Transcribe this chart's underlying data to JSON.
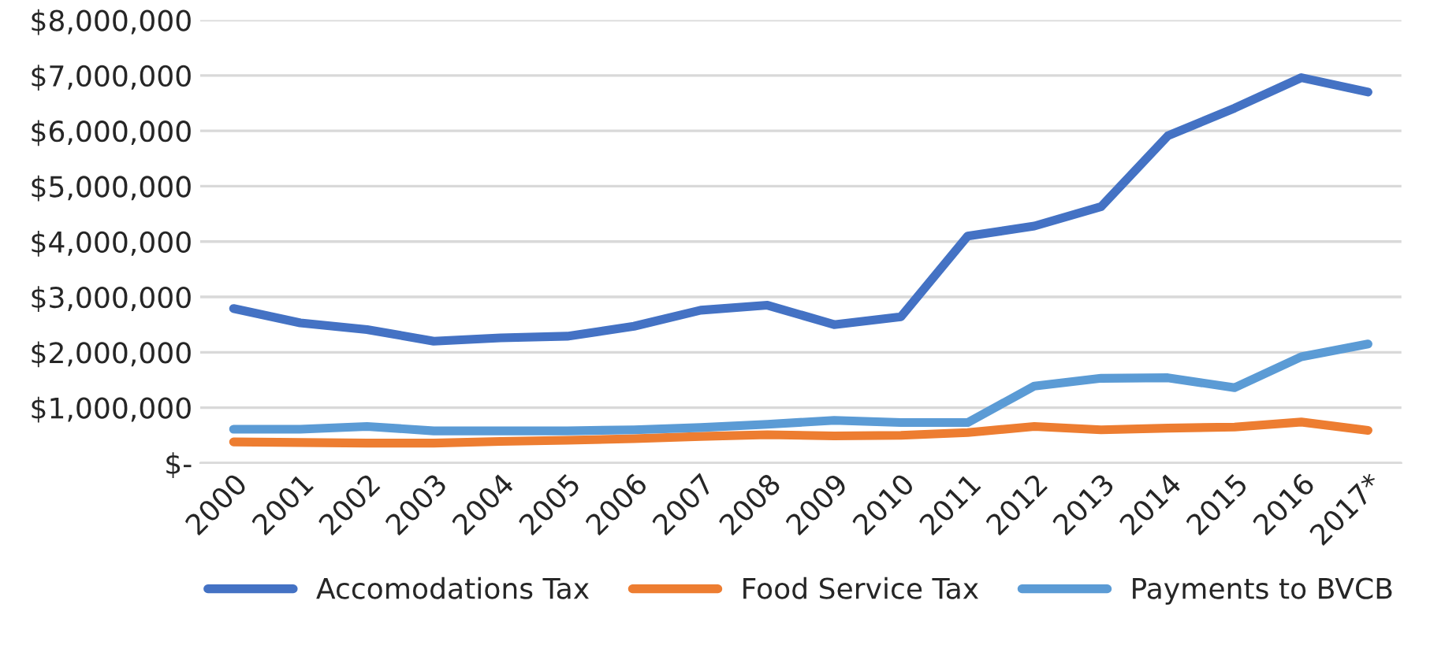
{
  "chart_data": {
    "type": "line",
    "categories": [
      "2000",
      "2001",
      "2002",
      "2003",
      "2004",
      "2005",
      "2006",
      "2007",
      "2008",
      "2009",
      "2010",
      "2011",
      "2012",
      "2013",
      "2014",
      "2015",
      "2016",
      "2017*"
    ],
    "series": [
      {
        "name": "Accomodations Tax",
        "color": "#4472c4",
        "values": [
          2790000,
          2530000,
          2410000,
          2200000,
          2260000,
          2290000,
          2470000,
          2760000,
          2850000,
          2500000,
          2640000,
          4100000,
          4280000,
          4630000,
          5910000,
          6410000,
          6960000,
          6700000
        ]
      },
      {
        "name": "Food Service Tax",
        "color": "#ed7d31",
        "values": [
          380000,
          370000,
          360000,
          360000,
          390000,
          410000,
          440000,
          480000,
          510000,
          490000,
          500000,
          550000,
          660000,
          600000,
          630000,
          650000,
          740000,
          590000
        ]
      },
      {
        "name": "Payments to BVCB",
        "color": "#5b9bd5",
        "values": [
          610000,
          610000,
          660000,
          580000,
          580000,
          580000,
          600000,
          640000,
          700000,
          770000,
          730000,
          730000,
          1390000,
          1530000,
          1540000,
          1360000,
          1920000,
          2150000
        ]
      }
    ],
    "ylim": [
      0,
      8000000
    ],
    "yticks": [
      {
        "value": 0,
        "label": "$-"
      },
      {
        "value": 1000000,
        "label": "$1,000,000"
      },
      {
        "value": 2000000,
        "label": "$2,000,000"
      },
      {
        "value": 3000000,
        "label": "$3,000,000"
      },
      {
        "value": 4000000,
        "label": "$4,000,000"
      },
      {
        "value": 5000000,
        "label": "$5,000,000"
      },
      {
        "value": 6000000,
        "label": "$6,000,000"
      },
      {
        "value": 7000000,
        "label": "$7,000,000"
      },
      {
        "value": 8000000,
        "label": "$8,000,000"
      }
    ],
    "grid": "y",
    "legend": "bottom",
    "marker": "none",
    "line_style": "solid"
  }
}
